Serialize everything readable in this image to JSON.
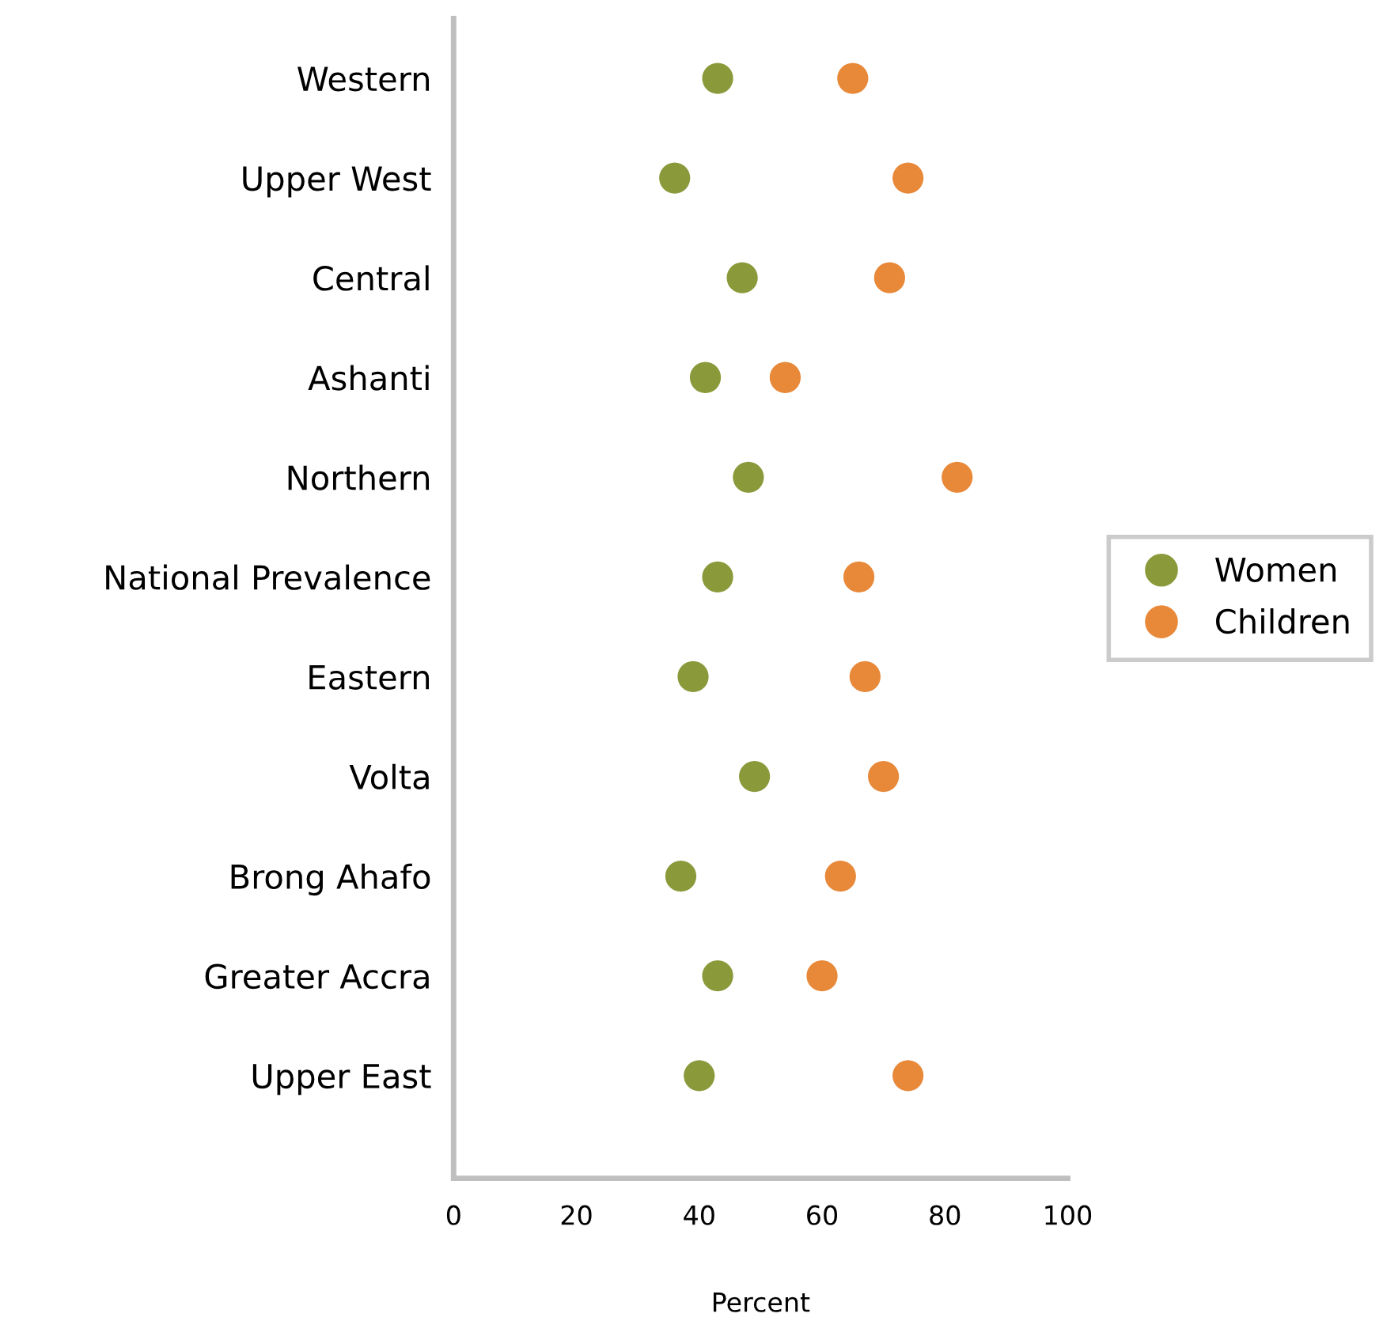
{
  "chart_data": {
    "type": "scatter",
    "orientation": "horizontal",
    "xlabel": "Percent",
    "categories": [
      "Western",
      "Upper West",
      "Central",
      "Ashanti",
      "Northern",
      "National Prevalence",
      "Eastern",
      "Volta",
      "Brong Ahafo",
      "Greater Accra",
      "Upper East"
    ],
    "series": [
      {
        "name": "Women",
        "color": "#8a9a3b",
        "values": [
          43,
          36,
          47,
          41,
          48,
          43,
          39,
          49,
          37,
          43,
          40
        ]
      },
      {
        "name": "Children",
        "color": "#e8893a",
        "values": [
          65,
          74,
          71,
          54,
          82,
          66,
          67,
          70,
          63,
          60,
          74
        ]
      }
    ],
    "xlim": [
      0,
      100
    ],
    "xticks": [
      0,
      20,
      40,
      60,
      80,
      100
    ],
    "grid": false,
    "legend": "right",
    "marker": "circle"
  }
}
